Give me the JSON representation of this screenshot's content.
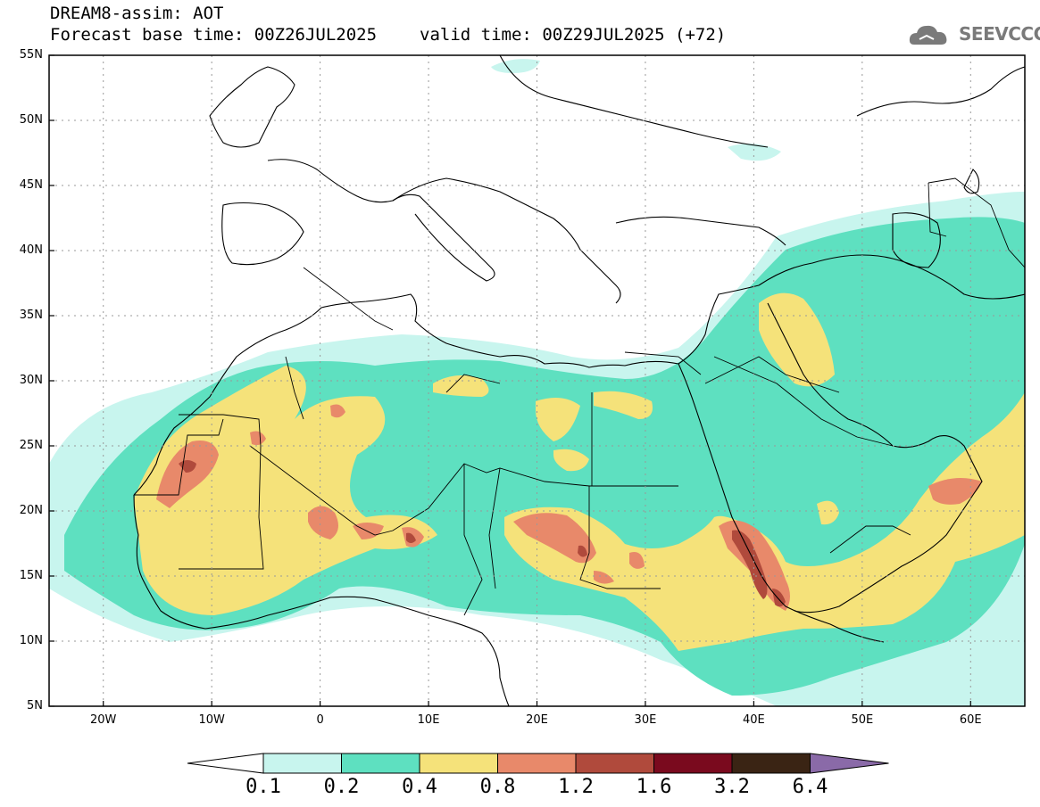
{
  "header": {
    "title": "DREAM8-assim: AOT",
    "base_time": "Forecast base time: 00Z26JUL2025",
    "valid_time": "valid time: 00Z29JUL2025 (+72)"
  },
  "logo": {
    "text": "SEEVCCC",
    "icon": "cloud-icon"
  },
  "map": {
    "lat_labels": [
      "55N",
      "50N",
      "45N",
      "40N",
      "35N",
      "30N",
      "25N",
      "20N",
      "15N",
      "10N",
      "5N"
    ],
    "lon_labels": [
      "20W",
      "10W",
      "0",
      "10E",
      "20E",
      "30E",
      "40E",
      "50E",
      "60E"
    ],
    "lon_range": [
      -25,
      65
    ],
    "lat_range": [
      5,
      55
    ],
    "grid": true,
    "variable": "AOT"
  },
  "legend": {
    "levels": [
      "0.1",
      "0.2",
      "0.4",
      "0.8",
      "1.2",
      "1.6",
      "3.2",
      "6.4"
    ],
    "colors": [
      "#c8f5ee",
      "#5ee0c0",
      "#f5e27a",
      "#e8896a",
      "#b04a3c",
      "#7a0a1e",
      "#3a2414",
      "#8a6aa8"
    ]
  }
}
